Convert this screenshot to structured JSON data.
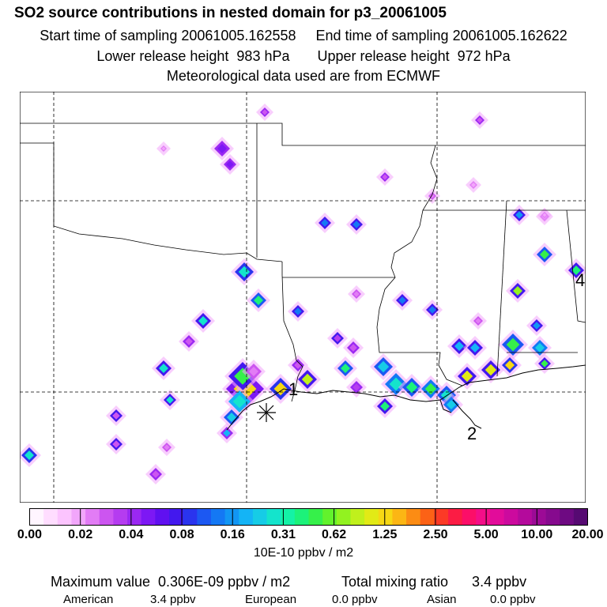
{
  "header": {
    "title": "SO2 source contributions in nested domain for p3_20061005",
    "line1": "Start time of sampling 20061005.162558     End time of sampling 20061005.162622",
    "line2": "Lower release height  983 hPa       Upper release height  972 hPa",
    "line3": "Meteorological data used are from ECMWF"
  },
  "map": {
    "markers": [
      "1",
      "2",
      "4"
    ],
    "release_symbol": "asterisk-icon"
  },
  "colorbar": {
    "tick_labels": [
      "0.00",
      "0.02",
      "0.04",
      "0.08",
      "0.16",
      "0.31",
      "0.62",
      "1.25",
      "2.50",
      "5.00",
      "10.00",
      "20.00"
    ],
    "colors": [
      "#fff5ff",
      "#ffddff",
      "#fcc4fe",
      "#f2a6fb",
      "#e27cf5",
      "#cc55f0",
      "#b53cf0",
      "#9a28f2",
      "#7d18f4",
      "#6010f0",
      "#4318ee",
      "#2a34ee",
      "#1c58f2",
      "#1478f4",
      "#1296f4",
      "#14b4f6",
      "#16cce6",
      "#14e4cc",
      "#14f2a6",
      "#1cf27a",
      "#36f04a",
      "#62f22c",
      "#92f220",
      "#c0f01c",
      "#e2ea16",
      "#f6d814",
      "#fcb614",
      "#fc8c14",
      "#fc6216",
      "#fc3a26",
      "#fc1c44",
      "#fc0e68",
      "#f40e88",
      "#e20c9a",
      "#cc0a9e",
      "#b40a9c",
      "#9c0a96",
      "#860a8e",
      "#6e0a82",
      "#560a72"
    ],
    "units": "10E-10 ppbv / m2"
  },
  "footer": {
    "max_label": "Maximum value  0.306E-09 ppbv / m2",
    "total_label": "Total mixing ratio      3.4 ppbv",
    "american_label": "American",
    "american_value": "3.4 ppbv",
    "european_label": "European",
    "european_value": "0.0 ppbv",
    "asian_label": "Asian",
    "asian_value": "0.0 ppbv"
  }
}
